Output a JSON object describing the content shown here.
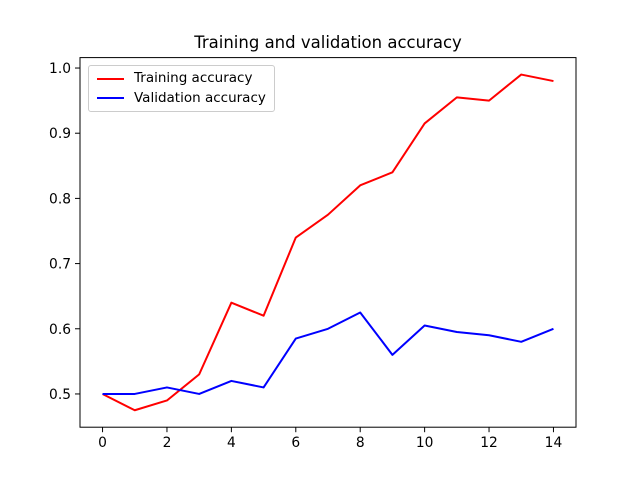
{
  "figure": {
    "background": "#ffffff",
    "axis_color": "#000000",
    "text_color": "#000000",
    "legend_border_color": "#cccccc"
  },
  "chart_data": {
    "type": "line",
    "title": "Training and validation accuracy",
    "x": [
      0,
      1,
      2,
      3,
      4,
      5,
      6,
      7,
      8,
      9,
      10,
      11,
      12,
      13,
      14
    ],
    "series": [
      {
        "name": "Training accuracy",
        "color": "#ff0000",
        "values": [
          0.5,
          0.475,
          0.49,
          0.53,
          0.64,
          0.62,
          0.74,
          0.775,
          0.82,
          0.84,
          0.915,
          0.955,
          0.95,
          0.99,
          0.98
        ]
      },
      {
        "name": "Validation accuracy",
        "color": "#0000ff",
        "values": [
          0.5,
          0.5,
          0.51,
          0.5,
          0.52,
          0.51,
          0.585,
          0.6,
          0.625,
          0.56,
          0.605,
          0.595,
          0.59,
          0.58,
          0.6
        ]
      }
    ],
    "xticks": [
      0,
      2,
      4,
      6,
      8,
      10,
      12,
      14
    ],
    "yticks": [
      0.5,
      0.6,
      0.7,
      0.8,
      0.9,
      1.0
    ],
    "xlim": [
      -0.7,
      14.7
    ],
    "ylim": [
      0.449,
      1.016
    ],
    "grid": false,
    "legend_position": "upper left"
  }
}
